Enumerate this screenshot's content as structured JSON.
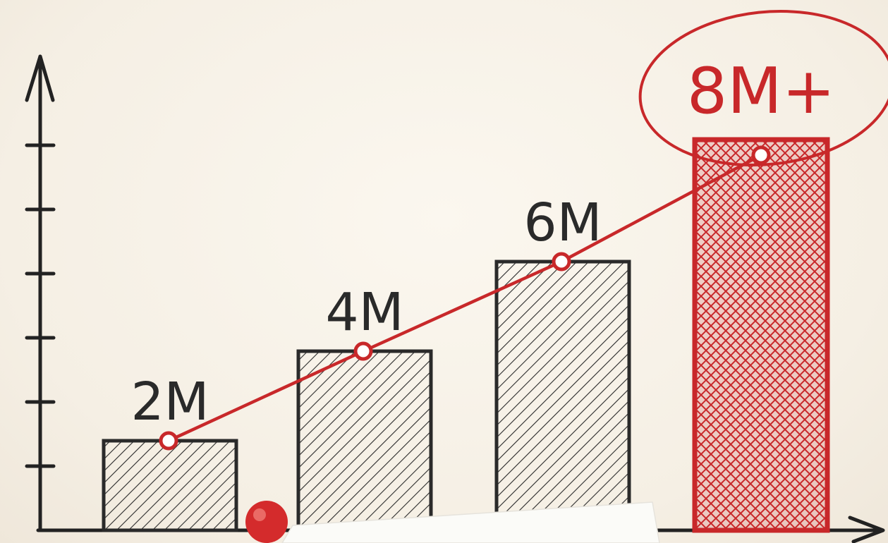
{
  "chart_data": {
    "type": "bar",
    "categories": [
      "",
      "",
      "",
      ""
    ],
    "values": [
      2,
      4,
      6,
      8
    ],
    "value_labels": [
      "2M",
      "4M",
      "6M",
      "8M+"
    ],
    "highlighted_index": 3,
    "trend_line": true,
    "ylim": [
      0,
      9
    ],
    "xlabel": "",
    "ylabel": "",
    "grid": false,
    "legend": "none",
    "colors": {
      "bar_ink": "#2a2a2a",
      "accent": "#c8282a",
      "paper": "#f6f0e6"
    }
  }
}
